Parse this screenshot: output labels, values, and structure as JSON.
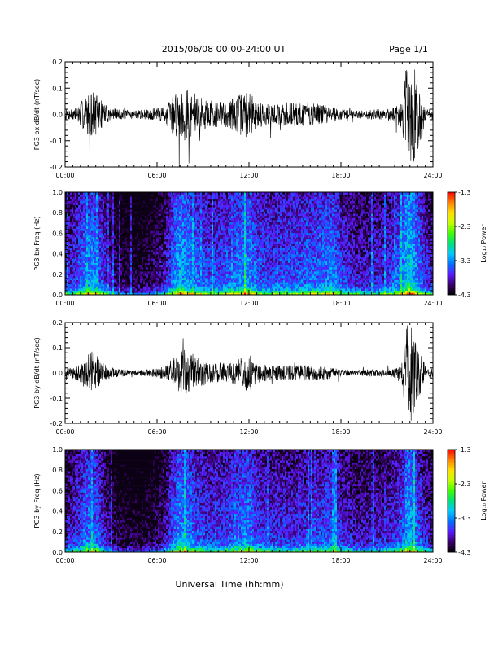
{
  "header": {
    "title": "2015/06/08  00:00-24:00 UT",
    "page": "Page 1/1"
  },
  "footer": {
    "xlabel": "Universal Time (hh:mm)"
  },
  "colorbar": {
    "label": "Log₁₀ Power",
    "ticks": [
      "-1.3",
      "-2.3",
      "-3.3",
      "-4.3"
    ],
    "range": [
      -4.3,
      -1.3
    ],
    "colors": [
      "#000000",
      "#3a006a",
      "#5a1aff",
      "#0070ff",
      "#00c8ff",
      "#00e07a",
      "#40ff00",
      "#c8ff00",
      "#ffe000",
      "#ff8000",
      "#ff0000"
    ]
  },
  "chart_data": [
    {
      "type": "line",
      "ylabel": "PG3 bx dB/dt (nT/sec)",
      "xlim": [
        "00:00",
        "24:00"
      ],
      "ylim": [
        -0.2,
        0.2
      ],
      "x_ticks": [
        "00:00",
        "06:00",
        "12:00",
        "18:00",
        "24:00"
      ],
      "y_ticks": [
        "0.2",
        "0.1",
        "0.0",
        "-0.1",
        "-0.2"
      ],
      "envelope": {
        "hours": [
          0,
          0.8,
          1.3,
          1.8,
          2.3,
          2.8,
          3.5,
          4.5,
          5.5,
          6.5,
          7.0,
          7.5,
          8.0,
          8.5,
          9.0,
          9.5,
          10.5,
          11.5,
          12.0,
          12.5,
          13.5,
          15.0,
          16.5,
          17.5,
          18.0,
          19.0,
          20.0,
          21.0,
          21.5,
          22.0,
          22.3,
          22.6,
          23.0,
          23.5,
          24.0
        ],
        "amplitude": [
          0.02,
          0.03,
          0.07,
          0.09,
          0.06,
          0.03,
          0.02,
          0.015,
          0.02,
          0.03,
          0.07,
          0.1,
          0.1,
          0.08,
          0.06,
          0.05,
          0.05,
          0.08,
          0.09,
          0.05,
          0.04,
          0.05,
          0.04,
          0.03,
          0.02,
          0.015,
          0.02,
          0.02,
          0.03,
          0.06,
          0.2,
          0.2,
          0.15,
          0.03,
          0.02
        ]
      }
    },
    {
      "type": "heatmap",
      "ylabel": "PG3 bx Freq (Hz)",
      "xlim": [
        "00:00",
        "24:00"
      ],
      "ylim": [
        0.0,
        1.0
      ],
      "x_ticks": [
        "00:00",
        "06:00",
        "12:00",
        "18:00",
        "24:00"
      ],
      "y_ticks": [
        "1.0",
        "0.8",
        "0.6",
        "0.4",
        "0.2",
        "0.0"
      ],
      "zlim": [
        -4.3,
        -1.3
      ],
      "activity": {
        "hours": [
          0,
          0.8,
          1.3,
          1.8,
          2.3,
          2.8,
          3.5,
          4.5,
          5.5,
          6.5,
          7.0,
          7.5,
          8.0,
          8.5,
          9.0,
          9.5,
          10.5,
          11.5,
          12.0,
          12.5,
          13.5,
          15.0,
          16.5,
          17.5,
          18.0,
          19.0,
          20.0,
          21.0,
          21.5,
          22.0,
          22.3,
          22.6,
          23.0,
          23.5,
          24.0
        ],
        "level": [
          0.35,
          0.45,
          0.6,
          0.65,
          0.5,
          0.3,
          0.15,
          0.1,
          0.15,
          0.3,
          0.55,
          0.7,
          0.65,
          0.55,
          0.5,
          0.45,
          0.5,
          0.6,
          0.65,
          0.5,
          0.45,
          0.5,
          0.55,
          0.6,
          0.45,
          0.35,
          0.35,
          0.4,
          0.5,
          0.6,
          0.8,
          0.8,
          0.6,
          0.4,
          0.35
        ]
      }
    },
    {
      "type": "line",
      "ylabel": "PG3 by dB/dt (nT/sec)",
      "xlim": [
        "00:00",
        "24:00"
      ],
      "ylim": [
        -0.2,
        0.2
      ],
      "x_ticks": [
        "00:00",
        "06:00",
        "12:00",
        "18:00",
        "24:00"
      ],
      "y_ticks": [
        "0.2",
        "0.1",
        "0.0",
        "-0.1",
        "-0.2"
      ],
      "envelope": {
        "hours": [
          0,
          0.8,
          1.3,
          1.8,
          2.3,
          2.8,
          3.5,
          4.5,
          5.5,
          6.5,
          7.0,
          7.5,
          8.0,
          8.5,
          9.0,
          9.5,
          10.5,
          11.5,
          12.0,
          12.5,
          13.5,
          15.0,
          16.5,
          17.5,
          18.0,
          19.0,
          20.0,
          21.0,
          21.5,
          22.0,
          22.3,
          22.6,
          23.0,
          23.5,
          24.0
        ],
        "amplitude": [
          0.015,
          0.03,
          0.06,
          0.09,
          0.05,
          0.025,
          0.015,
          0.01,
          0.015,
          0.025,
          0.06,
          0.09,
          0.09,
          0.07,
          0.05,
          0.04,
          0.04,
          0.06,
          0.08,
          0.04,
          0.03,
          0.03,
          0.03,
          0.02,
          0.015,
          0.01,
          0.015,
          0.015,
          0.02,
          0.05,
          0.2,
          0.2,
          0.12,
          0.03,
          0.015
        ]
      }
    },
    {
      "type": "heatmap",
      "ylabel": "PG3 by Freq (Hz)",
      "xlim": [
        "00:00",
        "24:00"
      ],
      "ylim": [
        0.0,
        1.0
      ],
      "x_ticks": [
        "00:00",
        "06:00",
        "12:00",
        "18:00",
        "24:00"
      ],
      "y_ticks": [
        "1.0",
        "0.8",
        "0.6",
        "0.4",
        "0.2",
        "0.0"
      ],
      "zlim": [
        -4.3,
        -1.3
      ],
      "activity": {
        "hours": [
          0,
          0.8,
          1.3,
          1.8,
          2.3,
          2.8,
          3.5,
          4.5,
          5.5,
          6.5,
          7.0,
          7.5,
          8.0,
          8.5,
          9.0,
          9.5,
          10.5,
          11.5,
          12.0,
          12.5,
          13.5,
          15.0,
          16.5,
          17.5,
          18.0,
          19.0,
          20.0,
          21.0,
          21.5,
          22.0,
          22.3,
          22.6,
          23.0,
          23.5,
          24.0
        ],
        "level": [
          0.3,
          0.4,
          0.55,
          0.6,
          0.45,
          0.25,
          0.12,
          0.08,
          0.12,
          0.25,
          0.5,
          0.65,
          0.6,
          0.5,
          0.45,
          0.4,
          0.45,
          0.55,
          0.6,
          0.45,
          0.4,
          0.4,
          0.45,
          0.5,
          0.4,
          0.3,
          0.3,
          0.35,
          0.4,
          0.5,
          0.7,
          0.7,
          0.5,
          0.35,
          0.3
        ]
      }
    }
  ]
}
